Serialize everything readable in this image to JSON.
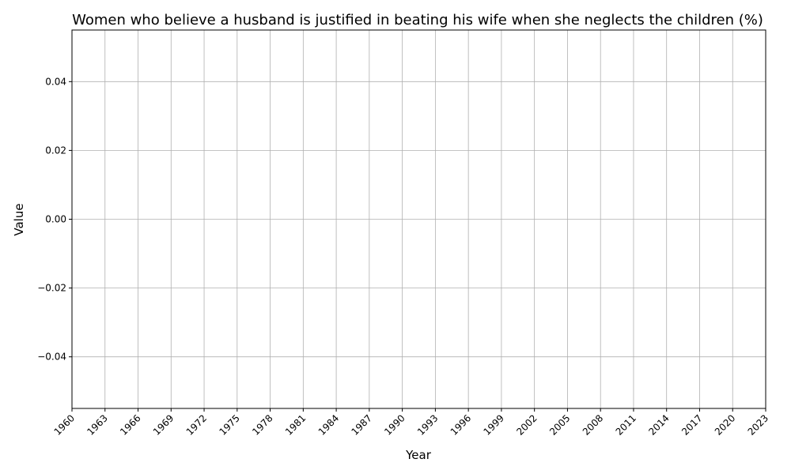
{
  "chart_data": {
    "type": "line",
    "title": "Women who believe a husband is justified in beating his wife when she neglects the children (%)",
    "xlabel": "Year",
    "ylabel": "Value",
    "xlim": [
      1960,
      2023
    ],
    "ylim": [
      -0.055,
      0.055
    ],
    "x_ticks": [
      1960,
      1963,
      1966,
      1969,
      1972,
      1975,
      1978,
      1981,
      1984,
      1987,
      1990,
      1993,
      1996,
      1999,
      2002,
      2005,
      2008,
      2011,
      2014,
      2017,
      2020,
      2023
    ],
    "y_ticks": [
      -0.04,
      -0.02,
      0.0,
      0.02,
      0.04
    ],
    "y_tick_labels": [
      "−0.04",
      "−0.02",
      "0.00",
      "0.02",
      "0.04"
    ],
    "grid": true,
    "series": []
  }
}
